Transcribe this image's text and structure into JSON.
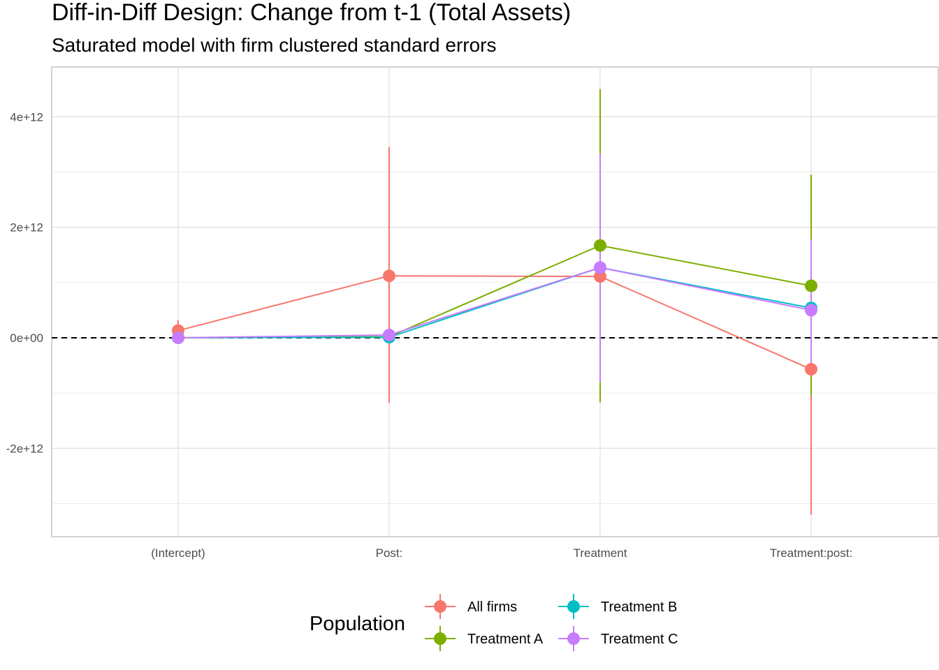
{
  "chart_data": {
    "type": "scatter",
    "title": "Diff-in-Diff Design: Change from t-1 (Total Assets)",
    "subtitle": "Saturated model with firm clustered standard errors",
    "xlabel": "",
    "ylabel": "",
    "categories": [
      "(Intercept)",
      "Post:",
      "Treatment",
      "Treatment:post:"
    ],
    "y_ticks": [
      -2000000000000.0,
      0,
      2000000000000.0,
      4000000000000.0
    ],
    "y_tick_labels": [
      "-2e+12",
      "0e+00",
      "2e+12",
      "4e+12"
    ],
    "ylim": [
      -3600000000000.0,
      4900000000000.0
    ],
    "reference_line": {
      "y": 0,
      "style": "dashed"
    },
    "grid": true,
    "legend": {
      "title": "Population",
      "position": "bottom"
    },
    "series": [
      {
        "name": "All firms",
        "color": "#F8766D",
        "values": [
          130000000000.0,
          1120000000000.0,
          1110000000000.0,
          -570000000000.0
        ],
        "lower": [
          -30000000000.0,
          -1180000000000.0,
          1050000000000.0,
          -3200000000000.0
        ],
        "upper": [
          320000000000.0,
          3450000000000.0,
          1150000000000.0,
          150000000000.0
        ]
      },
      {
        "name": "Treatment A",
        "color": "#7CAE00",
        "values": [
          0,
          20000000000.0,
          1670000000000.0,
          940000000000.0
        ],
        "lower": [
          0,
          -20000000000.0,
          -1170000000000.0,
          -1050000000000.0
        ],
        "upper": [
          0,
          60000000000.0,
          4500000000000.0,
          2950000000000.0
        ]
      },
      {
        "name": "Treatment B",
        "color": "#00BFC4",
        "values": [
          0,
          10000000000.0,
          1270000000000.0,
          540000000000.0
        ],
        "lower": [
          0,
          -30000000000.0,
          -800000000000.0,
          -500000000000.0
        ],
        "upper": [
          0,
          50000000000.0,
          3300000000000.0,
          1600000000000.0
        ]
      },
      {
        "name": "Treatment C",
        "color": "#C77CFF",
        "values": [
          0,
          50000000000.0,
          1270000000000.0,
          500000000000.0
        ],
        "lower": [
          0,
          0.0,
          -800000000000.0,
          -500000000000.0
        ],
        "upper": [
          0,
          100000000000.0,
          3330000000000.0,
          1780000000000.0
        ]
      }
    ]
  }
}
